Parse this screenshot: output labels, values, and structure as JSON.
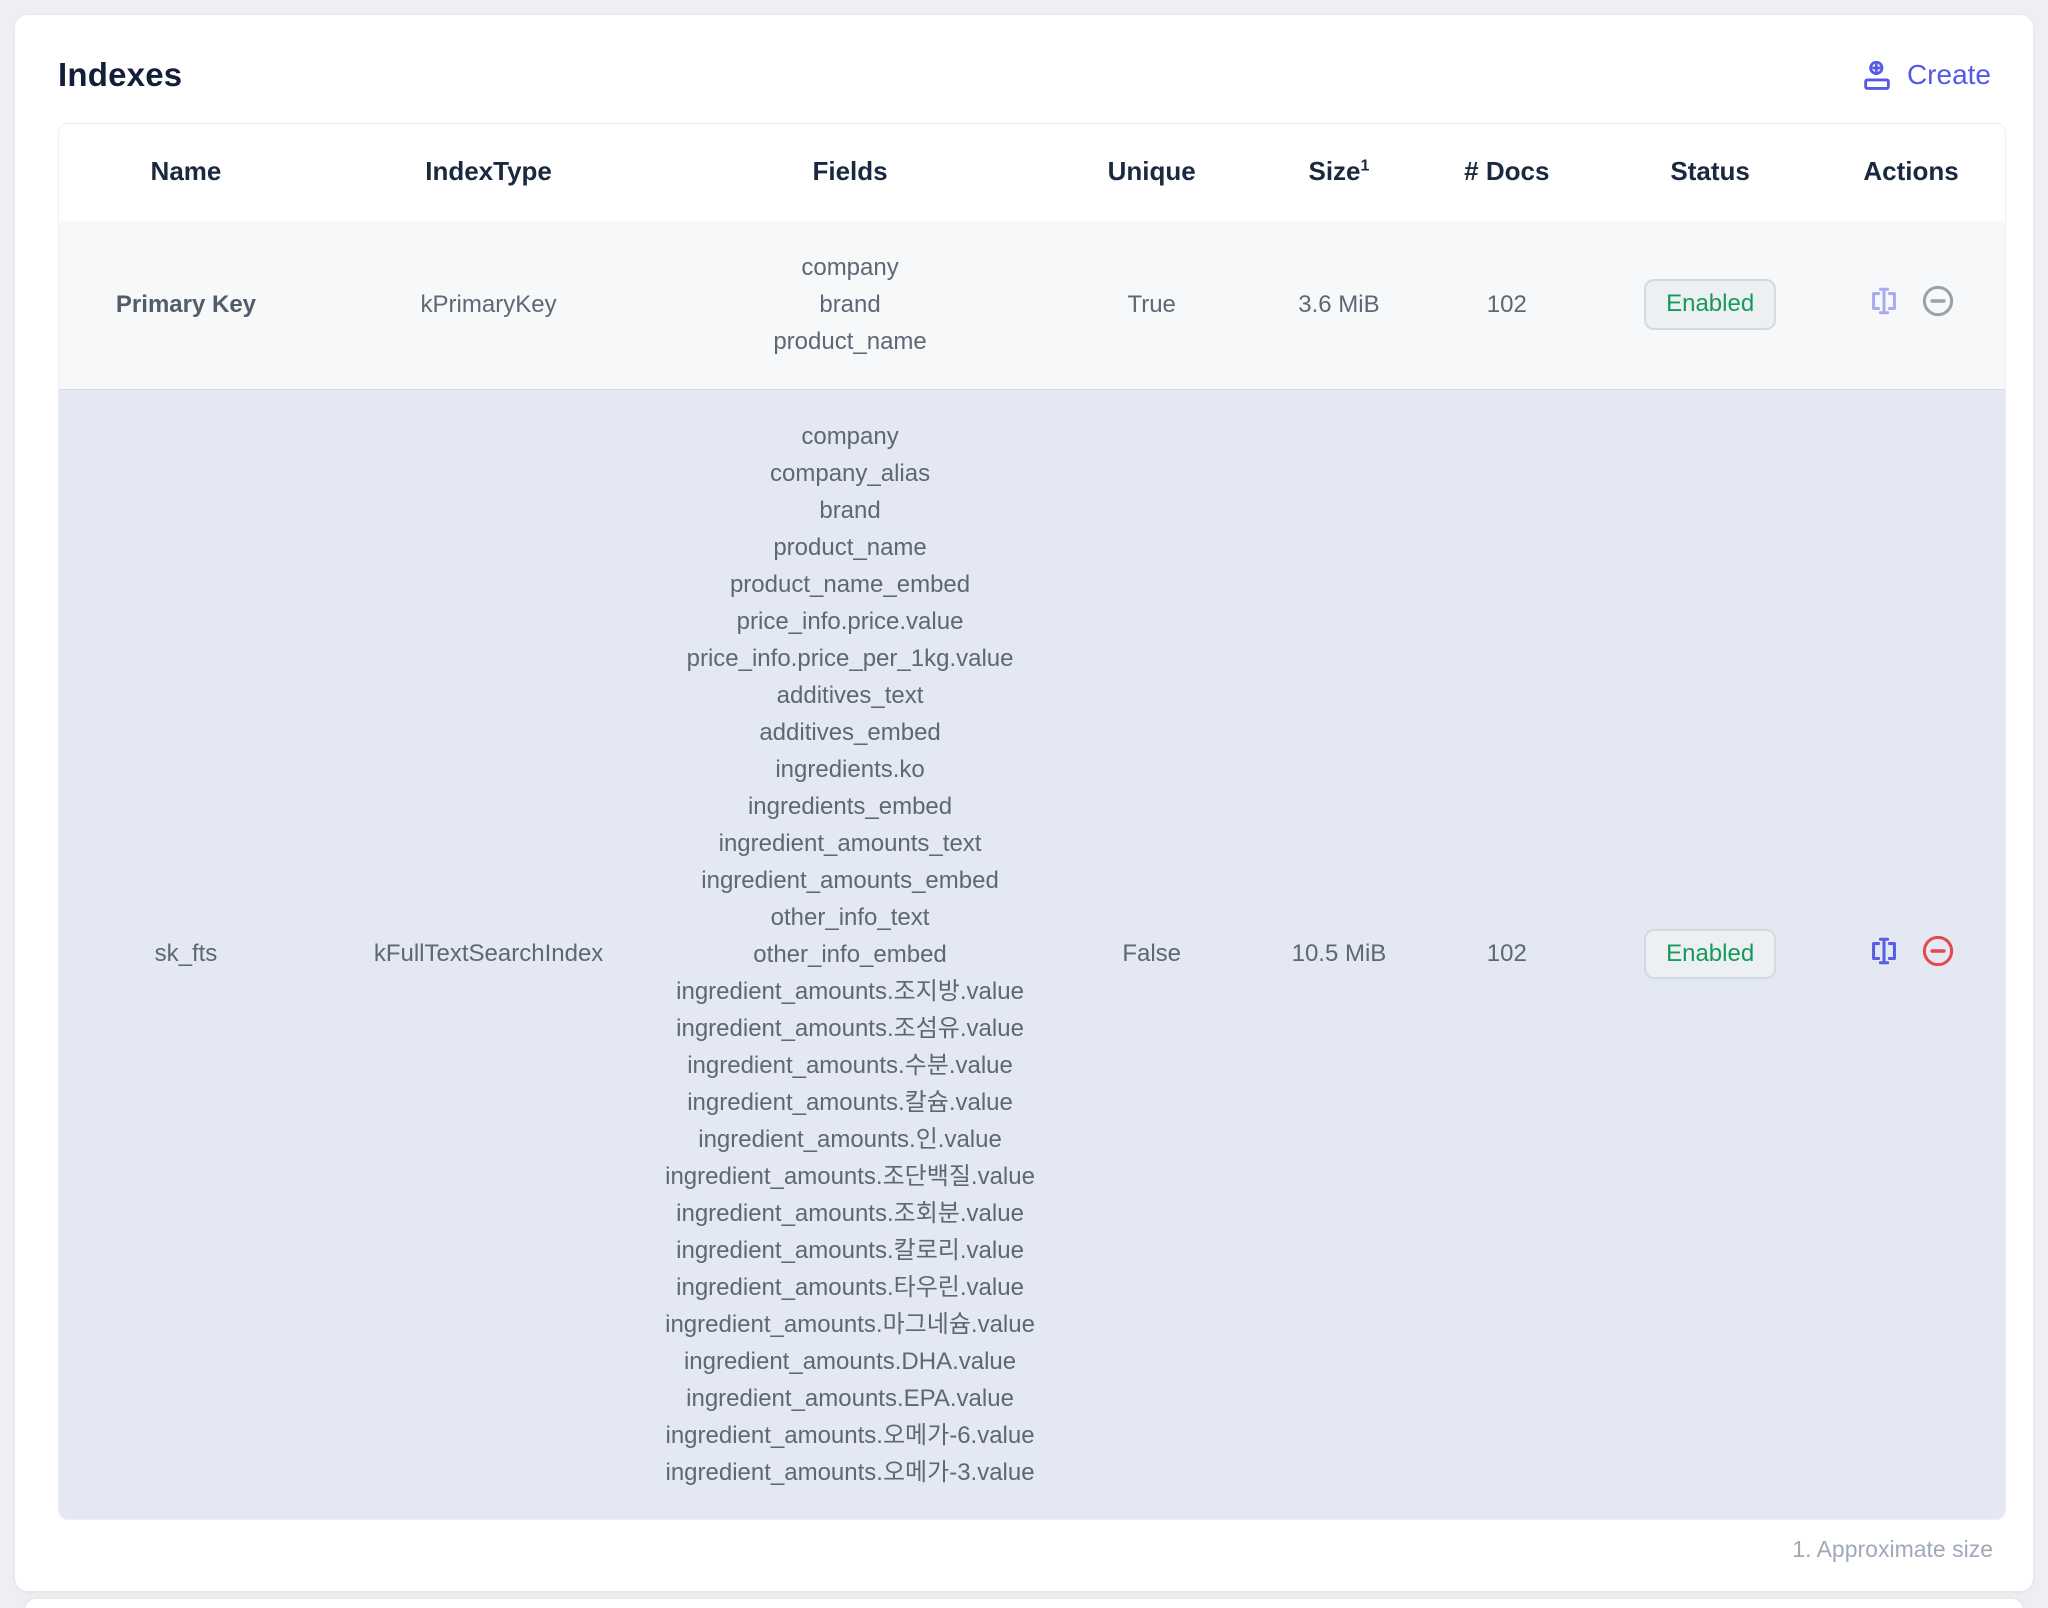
{
  "header": {
    "title": "Indexes",
    "create_label": "Create"
  },
  "table": {
    "columns": [
      {
        "label": "Name"
      },
      {
        "label": "IndexType"
      },
      {
        "label": "Fields"
      },
      {
        "label": "Unique"
      },
      {
        "label": "Size",
        "sup": "1"
      },
      {
        "label": "# Docs"
      },
      {
        "label": "Status"
      },
      {
        "label": "Actions"
      }
    ],
    "rows": [
      {
        "name": "Primary Key",
        "name_bold": true,
        "index_type": "kPrimaryKey",
        "fields": [
          "company",
          "brand",
          "product_name"
        ],
        "unique": "True",
        "size": "3.6 MiB",
        "docs": "102",
        "status": "Enabled",
        "actions": {
          "rename_enabled": false,
          "delete_enabled": false
        }
      },
      {
        "name": "sk_fts",
        "name_bold": false,
        "index_type": "kFullTextSearchIndex",
        "fields": [
          "company",
          "company_alias",
          "brand",
          "product_name",
          "product_name_embed",
          "price_info.price.value",
          "price_info.price_per_1kg.value",
          "additives_text",
          "additives_embed",
          "ingredients.ko",
          "ingredients_embed",
          "ingredient_amounts_text",
          "ingredient_amounts_embed",
          "other_info_text",
          "other_info_embed",
          "ingredient_amounts.조지방.value",
          "ingredient_amounts.조섬유.value",
          "ingredient_amounts.수분.value",
          "ingredient_amounts.칼슘.value",
          "ingredient_amounts.인.value",
          "ingredient_amounts.조단백질.value",
          "ingredient_amounts.조회분.value",
          "ingredient_amounts.칼로리.value",
          "ingredient_amounts.타우린.value",
          "ingredient_amounts.마그네슘.value",
          "ingredient_amounts.DHA.value",
          "ingredient_amounts.EPA.value",
          "ingredient_amounts.오메가-6.value",
          "ingredient_amounts.오메가-3.value"
        ],
        "unique": "False",
        "size": "10.5 MiB",
        "docs": "102",
        "status": "Enabled",
        "actions": {
          "rename_enabled": true,
          "delete_enabled": true
        }
      }
    ]
  },
  "footer": {
    "note": "1. Approximate size"
  },
  "colors": {
    "accent": "#5559e8",
    "status_enabled_text": "#17995d",
    "danger": "#e5484d",
    "row_primary_bg": "#f7f8f9",
    "row_alt_bg": "#e3e8f2",
    "header_text": "#1b2940"
  }
}
